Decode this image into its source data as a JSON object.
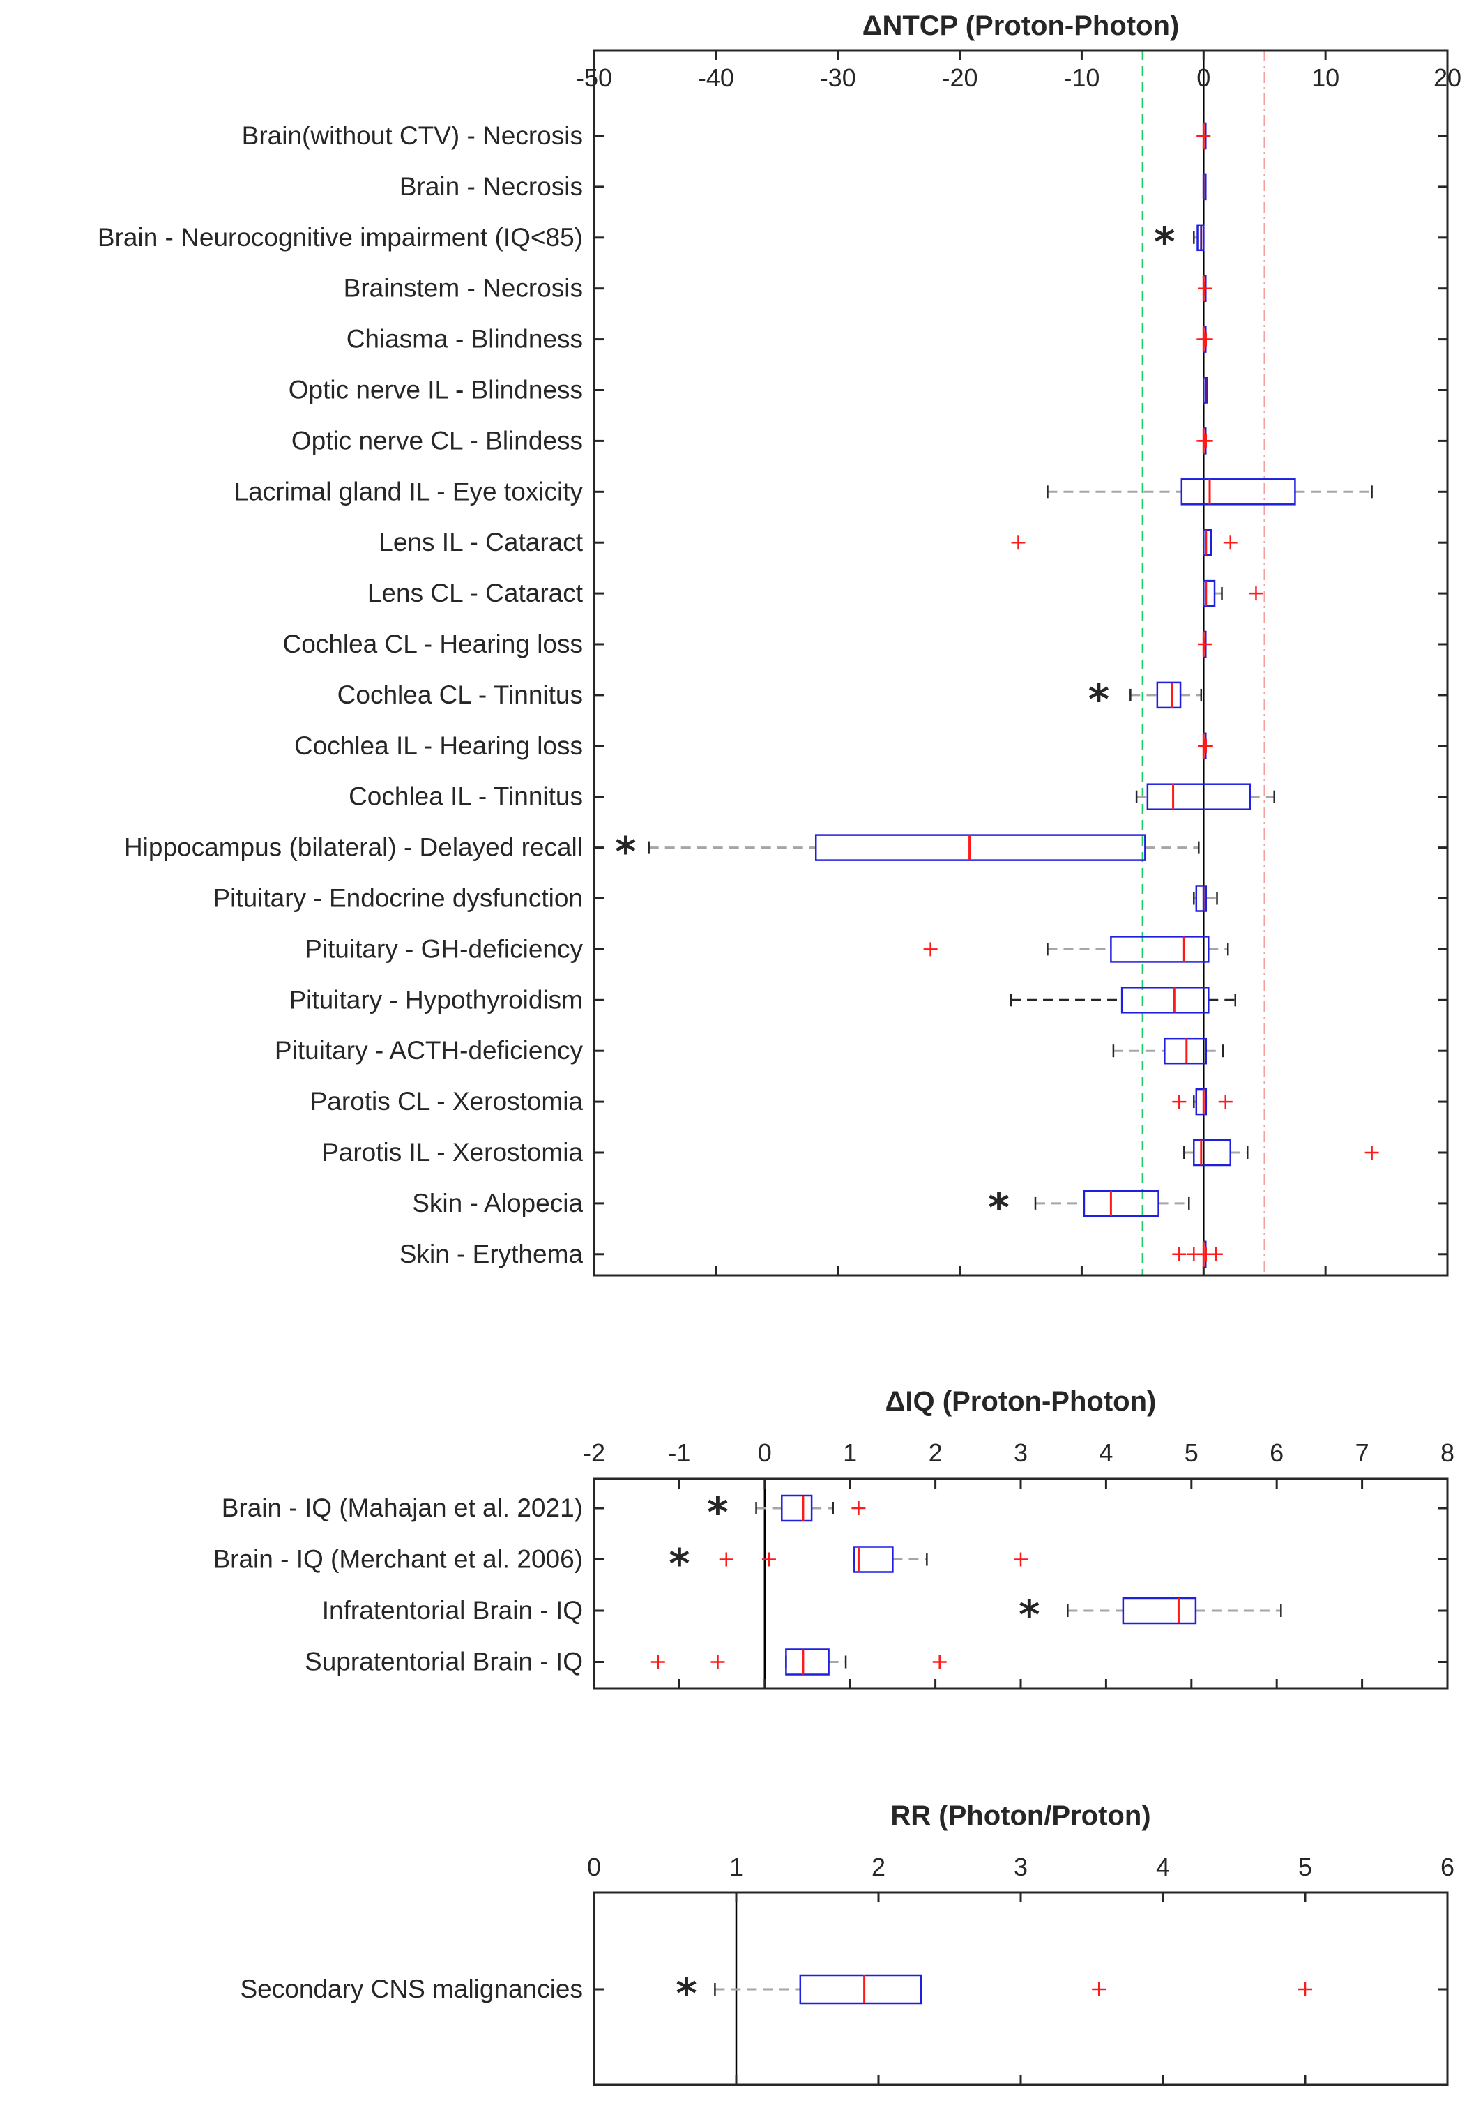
{
  "chart_data": [
    {
      "type": "boxplot",
      "title": "ΔNTCP (Proton-Photon)",
      "xlim": [
        -50,
        20
      ],
      "xticks": [
        -50,
        -40,
        -30,
        -20,
        -10,
        0,
        10,
        20
      ],
      "vertical_reference_lines": [
        {
          "x": -5,
          "style": "dashed",
          "color": "#22cc66"
        },
        {
          "x": 0,
          "style": "solid",
          "color": "#000000"
        },
        {
          "x": 5,
          "style": "dash-dot",
          "color": "#f4a0a0"
        }
      ],
      "rows": [
        {
          "label": "Brain(without CTV) - Necrosis",
          "q1": 0,
          "median": 0,
          "q3": 0,
          "wlo": 0,
          "whi": 0,
          "outliers": [
            0
          ],
          "star": null,
          "whisker_color": "gray",
          "median_color": "red"
        },
        {
          "label": "Brain - Necrosis",
          "q1": 0,
          "median": 0,
          "q3": 0,
          "wlo": 0,
          "whi": 0,
          "outliers": [],
          "star": null,
          "whisker_color": "gray",
          "median_color": "dark"
        },
        {
          "label": "Brain - Neurocognitive impairment (IQ<85)",
          "q1": -0.5,
          "median": -0.2,
          "q3": 0,
          "wlo": -0.8,
          "whi": 0,
          "outliers": [],
          "star": -3.2,
          "whisker_color": "gray",
          "median_color": "dark"
        },
        {
          "label": "Brainstem - Necrosis",
          "q1": 0,
          "median": 0,
          "q3": 0,
          "wlo": 0,
          "whi": 0,
          "outliers": [
            0.1
          ],
          "star": null,
          "whisker_color": "gray",
          "median_color": "red"
        },
        {
          "label": "Chiasma - Blindness",
          "q1": 0,
          "median": 0,
          "q3": 0,
          "wlo": 0,
          "whi": 0,
          "outliers": [
            0,
            0.1,
            0.2
          ],
          "star": null,
          "whisker_color": "gray",
          "median_color": "red"
        },
        {
          "label": "Optic nerve IL - Blindness",
          "q1": 0,
          "median": 0.2,
          "q3": 0.3,
          "wlo": 0,
          "whi": 0.3,
          "outliers": [],
          "star": null,
          "whisker_color": "gray",
          "median_color": "dark"
        },
        {
          "label": "Optic nerve CL - Blindess",
          "q1": 0,
          "median": 0,
          "q3": 0,
          "wlo": 0,
          "whi": 0,
          "outliers": [
            0,
            0.1,
            0.2
          ],
          "star": null,
          "whisker_color": "gray",
          "median_color": "red"
        },
        {
          "label": "Lacrimal gland IL - Eye toxicity",
          "q1": -1.8,
          "median": 0.5,
          "q3": 7.5,
          "wlo": -12.8,
          "whi": 13.8,
          "outliers": [],
          "star": null,
          "whisker_color": "gray",
          "median_color": "red"
        },
        {
          "label": "Lens IL - Cataract",
          "q1": 0,
          "median": 0.2,
          "q3": 0.6,
          "wlo": 0,
          "whi": 0.6,
          "outliers": [
            -15.2,
            2.2
          ],
          "star": null,
          "whisker_color": "gray",
          "median_color": "red"
        },
        {
          "label": "Lens CL - Cataract",
          "q1": 0,
          "median": 0.2,
          "q3": 0.9,
          "wlo": 0,
          "whi": 1.5,
          "outliers": [
            4.3
          ],
          "star": null,
          "whisker_color": "gray",
          "median_color": "red"
        },
        {
          "label": "Cochlea CL - Hearing loss",
          "q1": 0,
          "median": 0,
          "q3": 0,
          "wlo": 0,
          "whi": 0,
          "outliers": [
            0.1
          ],
          "star": null,
          "whisker_color": "gray",
          "median_color": "red"
        },
        {
          "label": "Cochlea CL - Tinnitus",
          "q1": -3.8,
          "median": -2.6,
          "q3": -1.9,
          "wlo": -6,
          "whi": -0.2,
          "outliers": [],
          "star": -8.6,
          "whisker_color": "gray",
          "median_color": "red"
        },
        {
          "label": "Cochlea IL - Hearing loss",
          "q1": 0,
          "median": 0,
          "q3": 0,
          "wlo": 0,
          "whi": 0,
          "outliers": [
            0.1,
            0.2
          ],
          "star": null,
          "whisker_color": "gray",
          "median_color": "red"
        },
        {
          "label": "Cochlea IL - Tinnitus",
          "q1": -4.6,
          "median": -2.5,
          "q3": 3.8,
          "wlo": -5.5,
          "whi": 5.8,
          "outliers": [],
          "star": null,
          "whisker_color": "gray",
          "median_color": "red"
        },
        {
          "label": "Hippocampus (bilateral) - Delayed recall",
          "q1": -31.8,
          "median": -19.2,
          "q3": -4.8,
          "wlo": -45.5,
          "whi": -0.4,
          "outliers": [],
          "star": -47.4,
          "whisker_color": "gray",
          "median_color": "red"
        },
        {
          "label": "Pituitary - Endocrine dysfunction",
          "q1": -0.6,
          "median": 0,
          "q3": 0.2,
          "wlo": -0.8,
          "whi": 1.1,
          "outliers": [],
          "star": null,
          "whisker_color": "gray",
          "median_color": "dark"
        },
        {
          "label": "Pituitary - GH-deficiency",
          "q1": -7.6,
          "median": -1.6,
          "q3": 0.4,
          "wlo": -12.8,
          "whi": 2,
          "outliers": [
            -22.4
          ],
          "star": null,
          "whisker_color": "gray",
          "median_color": "red"
        },
        {
          "label": "Pituitary - Hypothyroidism",
          "q1": -6.7,
          "median": -2.4,
          "q3": 0.4,
          "wlo": -15.8,
          "whi": 2.6,
          "outliers": [],
          "star": null,
          "whisker_color": "dark",
          "median_color": "red"
        },
        {
          "label": "Pituitary - ACTH-deficiency",
          "q1": -3.2,
          "median": -1.4,
          "q3": 0.2,
          "wlo": -7.4,
          "whi": 1.6,
          "outliers": [],
          "star": null,
          "whisker_color": "gray",
          "median_color": "red"
        },
        {
          "label": "Parotis CL - Xerostomia",
          "q1": -0.6,
          "median": 0,
          "q3": 0.2,
          "wlo": -0.8,
          "whi": 0.2,
          "outliers": [
            -2,
            1.8
          ],
          "star": null,
          "whisker_color": "gray",
          "median_color": "red"
        },
        {
          "label": "Parotis IL - Xerostomia",
          "q1": -0.8,
          "median": -0.2,
          "q3": 2.2,
          "wlo": -1.6,
          "whi": 3.6,
          "outliers": [
            13.8
          ],
          "star": null,
          "whisker_color": "gray",
          "median_color": "red"
        },
        {
          "label": "Skin -  Alopecia",
          "q1": -9.8,
          "median": -7.6,
          "q3": -3.7,
          "wlo": -13.8,
          "whi": -1.2,
          "outliers": [],
          "star": -16.8,
          "whisker_color": "gray",
          "median_color": "red"
        },
        {
          "label": "Skin - Erythema",
          "q1": 0,
          "median": 0,
          "q3": 0,
          "wlo": 0,
          "whi": 0,
          "outliers": [
            -2,
            -0.8,
            0.2,
            1
          ],
          "star": null,
          "whisker_color": "gray",
          "median_color": "red"
        }
      ]
    },
    {
      "type": "boxplot",
      "title": "ΔIQ (Proton-Photon)",
      "xlim": [
        -2,
        8
      ],
      "xticks": [
        -2,
        -1,
        0,
        1,
        2,
        3,
        4,
        5,
        6,
        7,
        8
      ],
      "vertical_reference_lines": [
        {
          "x": 0,
          "style": "solid",
          "color": "#000000"
        }
      ],
      "rows": [
        {
          "label": "Brain - IQ (Mahajan et al. 2021)",
          "q1": 0.2,
          "median": 0.45,
          "q3": 0.55,
          "wlo": -0.1,
          "whi": 0.8,
          "outliers": [
            1.1
          ],
          "star": -0.55,
          "whisker_color": "gray",
          "median_color": "red"
        },
        {
          "label": "Brain - IQ (Merchant et al. 2006)",
          "q1": 1.05,
          "median": 1.1,
          "q3": 1.5,
          "wlo": 1.05,
          "whi": 1.9,
          "outliers": [
            -0.45,
            0.05,
            3
          ],
          "star": -1,
          "whisker_color": "gray",
          "median_color": "red"
        },
        {
          "label": "Infratentorial Brain - IQ",
          "q1": 4.2,
          "median": 4.85,
          "q3": 5.05,
          "wlo": 3.55,
          "whi": 6.05,
          "outliers": [],
          "star": 3.1,
          "whisker_color": "gray",
          "median_color": "red"
        },
        {
          "label": "Supratentorial Brain - IQ",
          "q1": 0.25,
          "median": 0.45,
          "q3": 0.75,
          "wlo": 0.25,
          "whi": 0.95,
          "outliers": [
            -1.25,
            -0.55,
            2.05
          ],
          "star": null,
          "whisker_color": "gray",
          "median_color": "red"
        }
      ]
    },
    {
      "type": "boxplot",
      "title": "RR (Photon/Proton)",
      "xlim": [
        0,
        6
      ],
      "xticks": [
        0,
        1,
        2,
        3,
        4,
        5,
        6
      ],
      "vertical_reference_lines": [
        {
          "x": 1,
          "style": "solid",
          "color": "#000000"
        }
      ],
      "rows": [
        {
          "label": "Secondary CNS malignancies",
          "q1": 1.45,
          "median": 1.9,
          "q3": 2.3,
          "wlo": 0.85,
          "whi": 2.3,
          "outliers": [
            3.55,
            5
          ],
          "star": 0.65,
          "whisker_color": "gray",
          "median_color": "red"
        }
      ]
    }
  ]
}
